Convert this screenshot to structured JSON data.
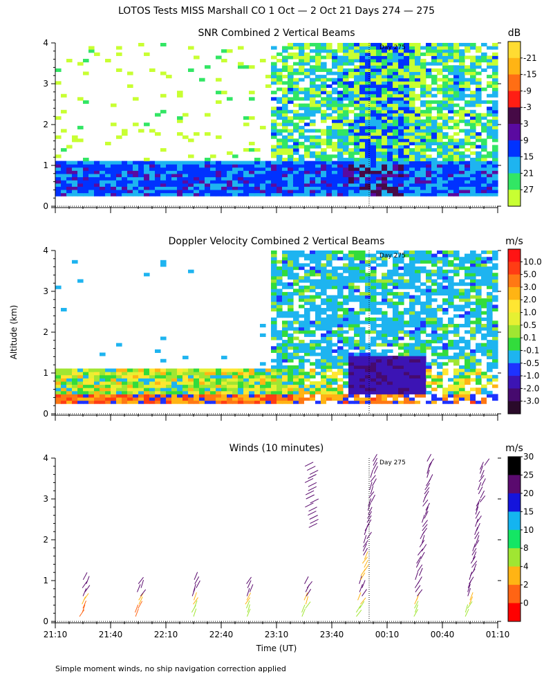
{
  "title": "LOTOS Tests MISS Marshall CO   1 Oct —  2 Oct 21 Days 274 — 275",
  "footnote": "Simple moment winds, no ship navigation correction applied",
  "chart_data": [
    {
      "type": "heatmap",
      "title": "SNR Combined 2 Vertical Beams",
      "ylabel": "Altitude (km)",
      "xlabel": "Time (UT)",
      "ylim": [
        0,
        4
      ],
      "yticks": [
        "0",
        "1",
        "2",
        "3",
        "4"
      ],
      "xtick_labels": [
        "21:10",
        "21:40",
        "22:10",
        "22:40",
        "23:10",
        "23:40",
        "00:10",
        "00:40",
        "01:10"
      ],
      "xtick_count": 9,
      "day_marker": "Day 275",
      "colorbar": {
        "unit": "dB",
        "levels": [
          "-21",
          "-15",
          "-9",
          "-3",
          "3",
          "9",
          "15",
          "21",
          "27"
        ],
        "colors": [
          "#c8ff32",
          "#32e664",
          "#1eb4f0",
          "#0032ff",
          "#5a0aa0",
          "#460a46",
          "#ff1e14",
          "#ff6e14",
          "#ffb414",
          "#ffdc32"
        ]
      }
    },
    {
      "type": "heatmap",
      "title": "Doppler Velocity Combined 2 Vertical Beams",
      "ylabel": "Altitude (km)",
      "ylim": [
        0,
        4
      ],
      "yticks": [
        "0",
        "1",
        "2",
        "3",
        "4"
      ],
      "day_marker": "Day 275",
      "colorbar": {
        "unit": "m/s",
        "levels": [
          "10.0",
          "5.0",
          "3.0",
          "2.0",
          "1.0",
          "0.5",
          "0.1",
          "-0.1",
          "-0.5",
          "-1.0",
          "-2.0",
          "-3.0"
        ],
        "colors": [
          "#2a0a2a",
          "#460a6e",
          "#3c14b4",
          "#1e32ff",
          "#1eb4f0",
          "#32dc3c",
          "#a0e632",
          "#e6f032",
          "#ffe632",
          "#ffb414",
          "#ff7814",
          "#ff3c14",
          "#ff1414"
        ]
      }
    },
    {
      "type": "scatter",
      "title": "Winds (10 minutes)",
      "ylabel": "Altitude (km)",
      "xlabel": "Time (UT)",
      "ylim": [
        0,
        4
      ],
      "yticks": [
        "0",
        "1",
        "2",
        "3",
        "4"
      ],
      "xtick_labels": [
        "21:10",
        "21:40",
        "22:10",
        "22:40",
        "23:10",
        "23:40",
        "00:10",
        "00:40",
        "01:10"
      ],
      "day_marker": "Day 275",
      "colorbar": {
        "unit": "m/s",
        "levels": [
          "30",
          "25",
          "20",
          "15",
          "10",
          "8",
          "4",
          "2",
          "0"
        ],
        "colors": [
          "#ff0000",
          "#ff6414",
          "#ffb414",
          "#a0e632",
          "#14e664",
          "#14b4f0",
          "#1414dc",
          "#5a0a6e",
          "#000000"
        ]
      }
    }
  ]
}
